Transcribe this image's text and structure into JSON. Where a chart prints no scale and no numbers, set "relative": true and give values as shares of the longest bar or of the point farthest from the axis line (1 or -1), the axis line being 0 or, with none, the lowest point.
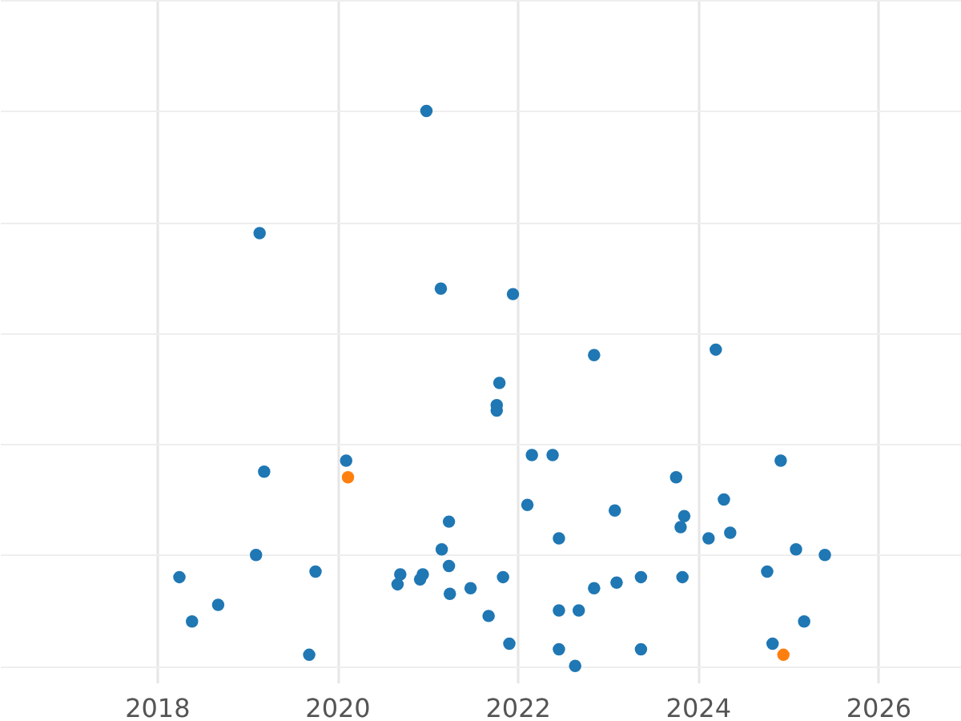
{
  "chart_data": {
    "type": "scatter",
    "relative": true,
    "grid": true,
    "marker": "circle",
    "xlim": [
      2016.26,
      2026.92
    ],
    "xticks": [
      2018,
      2020,
      2022,
      2024,
      2026
    ],
    "series": [
      {
        "color": "#1f77b4",
        "x": [
          2020.99,
          2019.14,
          2021.15,
          2021.95,
          2022.85,
          2024.2,
          2021.8,
          2021.77,
          2021.77,
          2022.16,
          2022.39,
          2019.19,
          2020.1,
          2023.76,
          2024.92,
          2024.29,
          2022.11,
          2023.08,
          2023.85,
          2021.24,
          2022.46,
          2023.81,
          2024.12,
          2024.36,
          2021.16,
          2019.1,
          2025.09,
          2025.41,
          2018.25,
          2019.76,
          2020.7,
          2020.95,
          2020.67,
          2020.92,
          2021.24,
          2021.84,
          2024.77,
          2023.1,
          2023.37,
          2023.83,
          2022.85,
          2021.25,
          2021.48,
          2022.46,
          2022.68,
          2018.39,
          2018.68,
          2021.68,
          2025.18,
          2021.91,
          2019.69,
          2022.46,
          2023.37,
          2024.83,
          2022.64
        ],
        "values": [
          1,
          0.78,
          0.68,
          0.67,
          0.56,
          0.57,
          0.51,
          0.47,
          0.46,
          0.38,
          0.38,
          0.35,
          0.37,
          0.34,
          0.37,
          0.3,
          0.29,
          0.28,
          0.27,
          0.26,
          0.23,
          0.25,
          0.23,
          0.24,
          0.21,
          0.2,
          0.21,
          0.2,
          0.16,
          0.17,
          0.165,
          0.165,
          0.147,
          0.156,
          0.18,
          0.16,
          0.17,
          0.15,
          0.16,
          0.16,
          0.14,
          0.13,
          0.14,
          0.1,
          0.1,
          0.08,
          0.11,
          0.09,
          0.08,
          0.04,
          0.02,
          0.03,
          0.03,
          0.04,
          0
        ]
      },
      {
        "color": "#ff7f0e",
        "x": [
          2020.12,
          2024.95
        ],
        "values": [
          0.34,
          0.02
        ]
      }
    ]
  }
}
